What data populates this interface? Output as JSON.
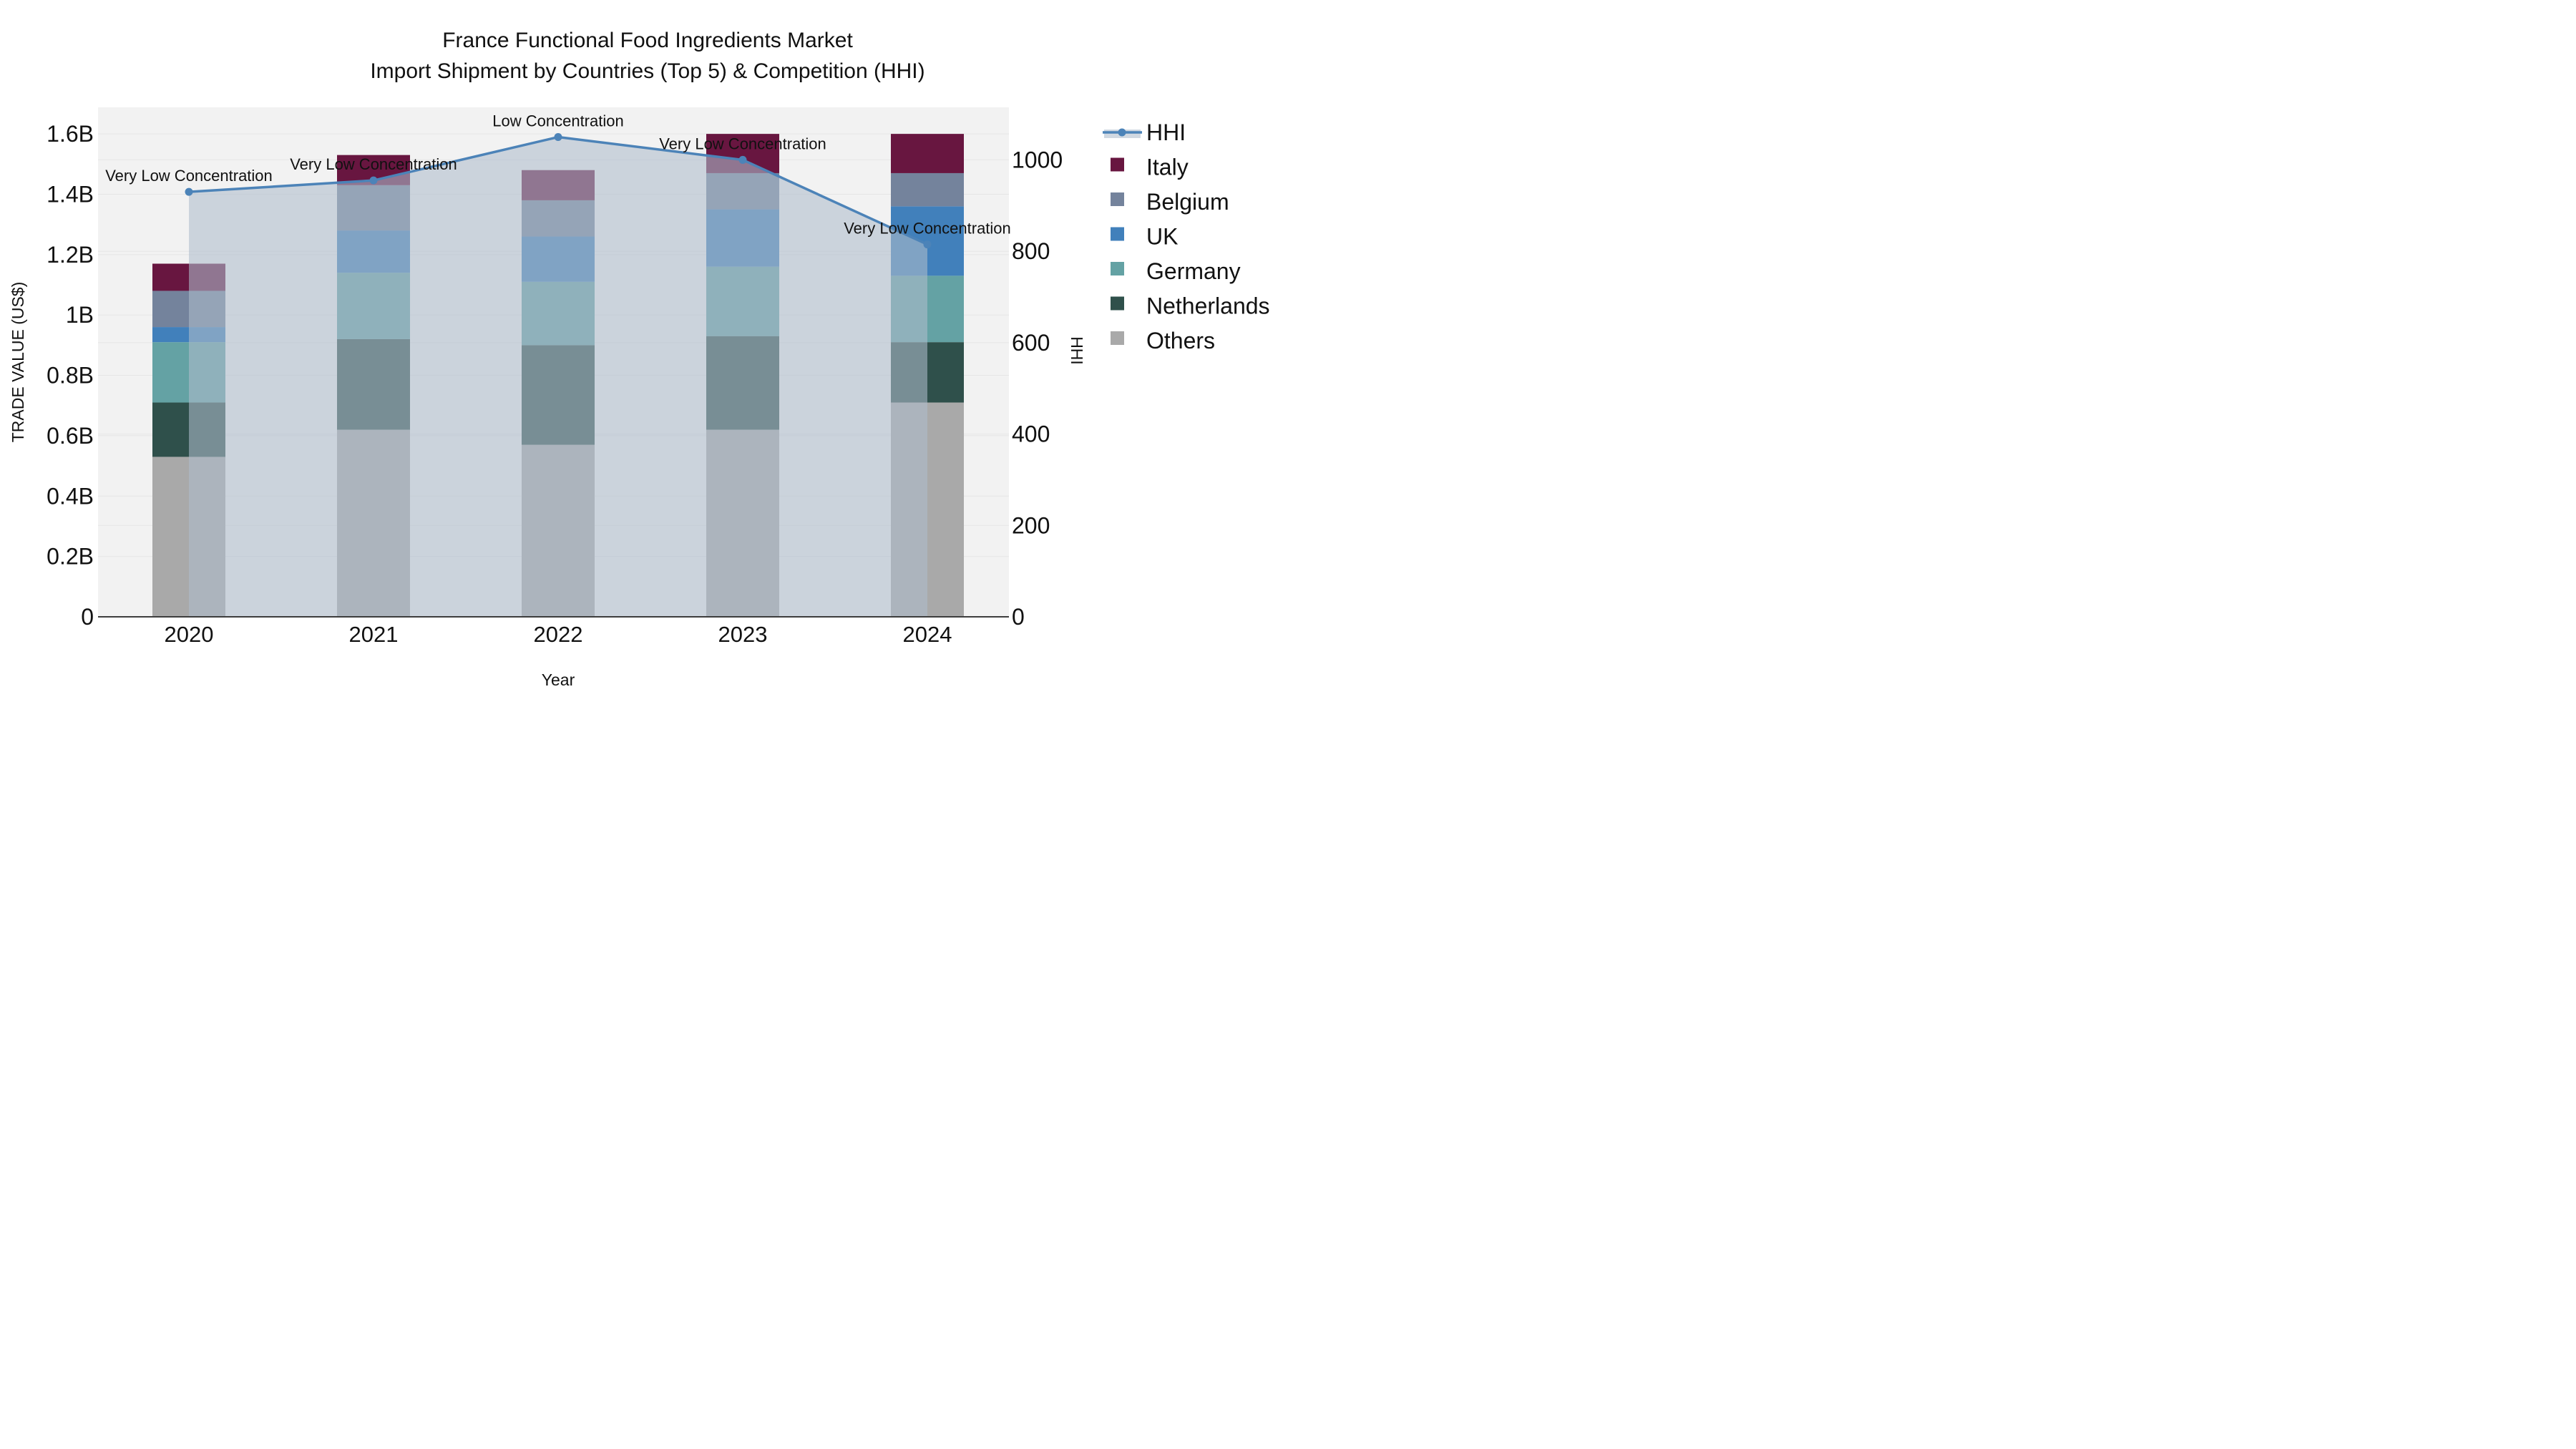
{
  "page": {
    "background": "#ffffff"
  },
  "chart_data": {
    "type": "bar",
    "subtype": "stacked-bar-with-line",
    "title_line1": "France Functional Food Ingredients Market",
    "title_line2": "Import Shipment by Countries (Top 5) & Competition (HHI)",
    "xlabel": "Year",
    "ylabel_left": "TRADE VALUE (US$)",
    "ylabel_right": "HHI",
    "categories": [
      "2020",
      "2021",
      "2022",
      "2023",
      "2024"
    ],
    "value_unit": "billions USD",
    "bar_series": [
      {
        "name": "Others",
        "color": "#a9a9a9",
        "values": [
          0.53,
          0.62,
          0.57,
          0.62,
          0.71
        ]
      },
      {
        "name": "Netherlands",
        "color": "#2f504b",
        "values": [
          0.18,
          0.3,
          0.33,
          0.31,
          0.2
        ]
      },
      {
        "name": "Germany",
        "color": "#64a2a4",
        "values": [
          0.2,
          0.22,
          0.21,
          0.23,
          0.22
        ]
      },
      {
        "name": "UK",
        "color": "#4180bb",
        "values": [
          0.05,
          0.14,
          0.15,
          0.19,
          0.23
        ]
      },
      {
        "name": "Belgium",
        "color": "#74839c",
        "values": [
          0.12,
          0.15,
          0.12,
          0.12,
          0.11
        ]
      },
      {
        "name": "Italy",
        "color": "#681640",
        "values": [
          0.09,
          0.1,
          0.1,
          0.13,
          0.13
        ]
      }
    ],
    "line_series": {
      "name": "HHI",
      "color": "#4c83b8",
      "area_fill": "rgba(174,187,204,0.58)",
      "values": [
        930,
        955,
        1050,
        1000,
        815
      ]
    },
    "annotations": [
      "Very Low Concentration",
      "Very Low Concentration",
      "Low Concentration",
      "Very Low Concentration",
      "Very Low Concentration"
    ],
    "axes": {
      "left_tick_values": [
        0,
        0.2,
        0.4,
        0.6,
        0.8,
        1.0,
        1.2,
        1.4,
        1.6
      ],
      "left_tick_labels": [
        "0",
        "0.2B",
        "0.4B",
        "0.6B",
        "0.8B",
        "1B",
        "1.2B",
        "1.4B",
        "1.6B"
      ],
      "left_max": 1.688,
      "right_tick_values": [
        0,
        200,
        400,
        600,
        800,
        1000
      ],
      "right_tick_labels": [
        "0",
        "200",
        "400",
        "600",
        "800",
        "1000"
      ],
      "right_max": 1115,
      "grid": true,
      "plot_background": "#f2f2f2",
      "grid_color": "#e6e6e6",
      "axis_line_color": "#3d3d3d"
    }
  }
}
